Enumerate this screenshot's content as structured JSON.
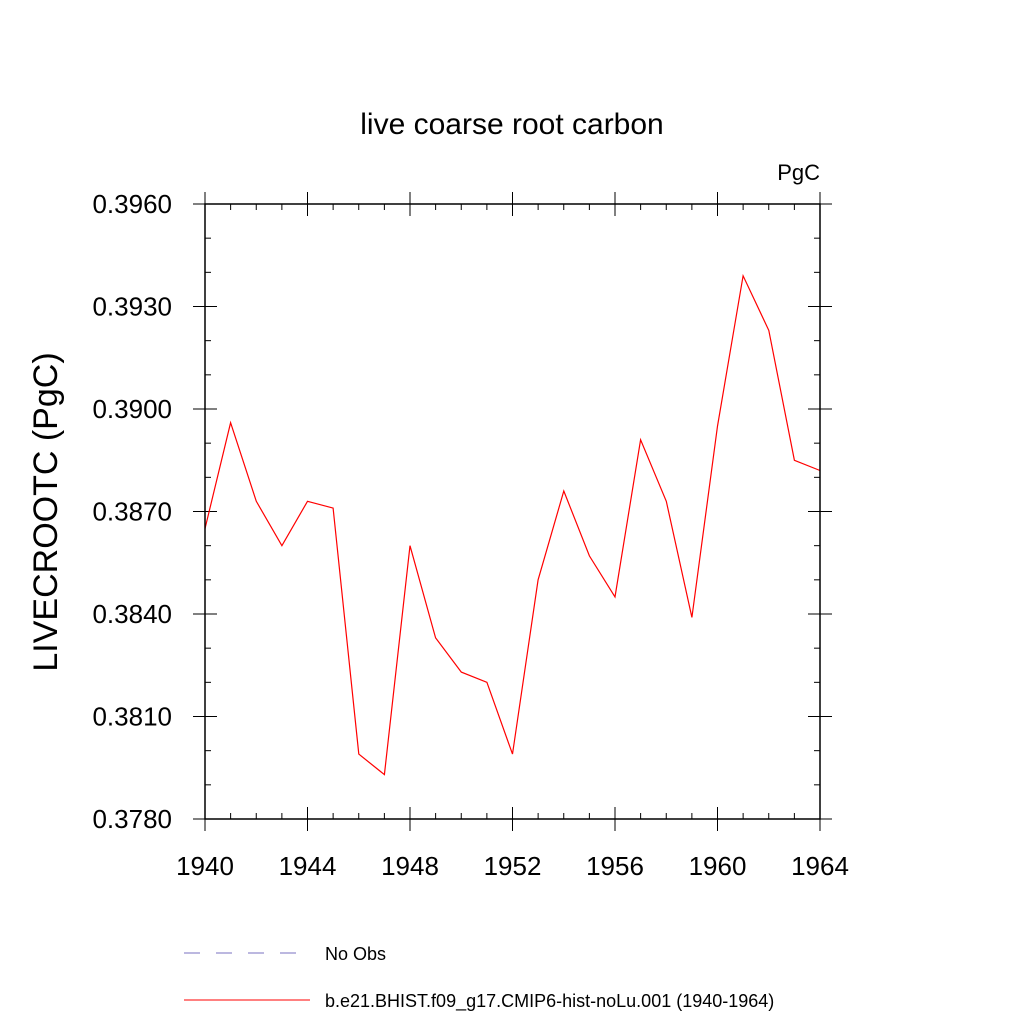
{
  "chart_data": {
    "type": "line",
    "title": "live coarse root carbon",
    "units_label": "PgC",
    "ylabel": "LIVECROOTC  (PgC)",
    "xlabel": "",
    "xlim": [
      1940,
      1964
    ],
    "ylim": [
      0.378,
      0.396
    ],
    "x_ticks": [
      1940,
      1944,
      1948,
      1952,
      1956,
      1960,
      1964
    ],
    "y_ticks": [
      "0.3780",
      "0.3810",
      "0.3840",
      "0.3870",
      "0.3900",
      "0.3930",
      "0.3960"
    ],
    "grid": false,
    "legend_position": "bottom",
    "x": [
      1940,
      1941,
      1942,
      1943,
      1944,
      1945,
      1946,
      1947,
      1948,
      1949,
      1950,
      1951,
      1952,
      1953,
      1954,
      1955,
      1956,
      1957,
      1958,
      1959,
      1960,
      1961,
      1962,
      1963,
      1964
    ],
    "series": [
      {
        "name": "b.e21.BHIST.f09_g17.CMIP6-hist-noLu.001 (1940-1964)",
        "color": "#ff0000",
        "style": "solid",
        "values": [
          0.3865,
          0.3896,
          0.3873,
          0.386,
          0.3873,
          0.3871,
          0.3799,
          0.3793,
          0.386,
          0.3833,
          0.3823,
          0.382,
          0.3799,
          0.385,
          0.3876,
          0.3857,
          0.3845,
          0.3891,
          0.3873,
          0.3839,
          0.3895,
          0.3939,
          0.3923,
          0.3885,
          0.3882
        ]
      }
    ],
    "legend": [
      {
        "label": "No Obs",
        "color": "#7a70c0",
        "style": "dashed"
      },
      {
        "label": "b.e21.BHIST.f09_g17.CMIP6-hist-noLu.001 (1940-1964)",
        "color": "#ff0000",
        "style": "solid"
      }
    ]
  }
}
